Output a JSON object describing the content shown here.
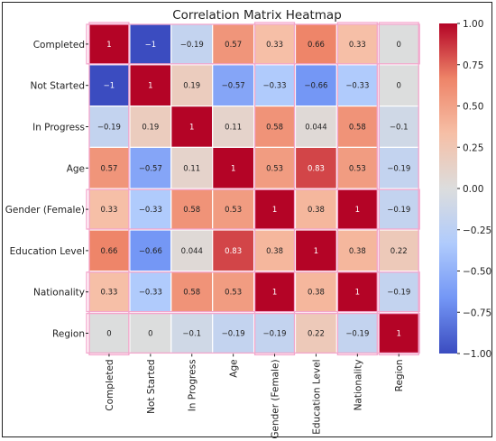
{
  "chart_data": {
    "type": "heatmap",
    "title": "Correlation Matrix Heatmap",
    "variables": [
      "Completed",
      "Not Started",
      "In Progress",
      "Age",
      "Gender (Female)",
      "Education Level",
      "Nationality",
      "Region"
    ],
    "matrix": [
      [
        1,
        -1,
        -0.19,
        0.57,
        0.33,
        0.66,
        0.33,
        0
      ],
      [
        -1,
        1,
        0.19,
        -0.57,
        -0.33,
        -0.66,
        -0.33,
        0
      ],
      [
        -0.19,
        0.19,
        1,
        0.11,
        0.58,
        0.044,
        0.58,
        -0.1
      ],
      [
        0.57,
        -0.57,
        0.11,
        1,
        0.53,
        0.83,
        0.53,
        -0.19
      ],
      [
        0.33,
        -0.33,
        0.58,
        0.53,
        1,
        0.38,
        1,
        -0.19
      ],
      [
        0.66,
        -0.66,
        0.044,
        0.83,
        0.38,
        1,
        0.38,
        0.22
      ],
      [
        0.33,
        -0.33,
        0.58,
        0.53,
        1,
        0.38,
        1,
        -0.19
      ],
      [
        0,
        0,
        -0.1,
        -0.19,
        -0.19,
        0.22,
        -0.19,
        1
      ]
    ],
    "annotations": [
      [
        "1",
        "−1",
        "−0.19",
        "0.57",
        "0.33",
        "0.66",
        "0.33",
        "0"
      ],
      [
        "−1",
        "1",
        "0.19",
        "−0.57",
        "−0.33",
        "−0.66",
        "−0.33",
        "0"
      ],
      [
        "−0.19",
        "0.19",
        "1",
        "0.11",
        "0.58",
        "0.044",
        "0.58",
        "−0.1"
      ],
      [
        "0.57",
        "−0.57",
        "0.11",
        "1",
        "0.53",
        "0.83",
        "0.53",
        "−0.19"
      ],
      [
        "0.33",
        "−0.33",
        "0.58",
        "0.53",
        "1",
        "0.38",
        "1",
        "−0.19"
      ],
      [
        "0.66",
        "−0.66",
        "0.044",
        "0.83",
        "0.38",
        "1",
        "0.38",
        "0.22"
      ],
      [
        "0.33",
        "−0.33",
        "0.58",
        "0.53",
        "1",
        "0.38",
        "1",
        "−0.19"
      ],
      [
        "0",
        "0",
        "−0.1",
        "−0.19",
        "−0.19",
        "0.22",
        "−0.19",
        "1"
      ]
    ],
    "colorbar": {
      "vmin": -1,
      "vmax": 1,
      "tick_values": [
        1,
        0.75,
        0.5,
        0.25,
        0,
        -0.25,
        -0.5,
        -0.75,
        -1
      ],
      "tick_labels": [
        "1.00",
        "0.75",
        "0.50",
        "0.25",
        "0.00",
        "−0.25",
        "−0.50",
        "−0.75",
        "−1.00"
      ]
    },
    "colormap": "coolwarm",
    "colormap_stops": [
      "#3b4cc0",
      "#7396f5",
      "#b0cbfc",
      "#dcdddd",
      "#f6bfa6",
      "#ee8468",
      "#b40426"
    ],
    "grid": false,
    "cell_gridlines": "white",
    "highlighted_labels": [
      "Completed",
      "Gender (Female)",
      "Nationality",
      "Region"
    ],
    "highlight_color": "#f3a6cc"
  }
}
